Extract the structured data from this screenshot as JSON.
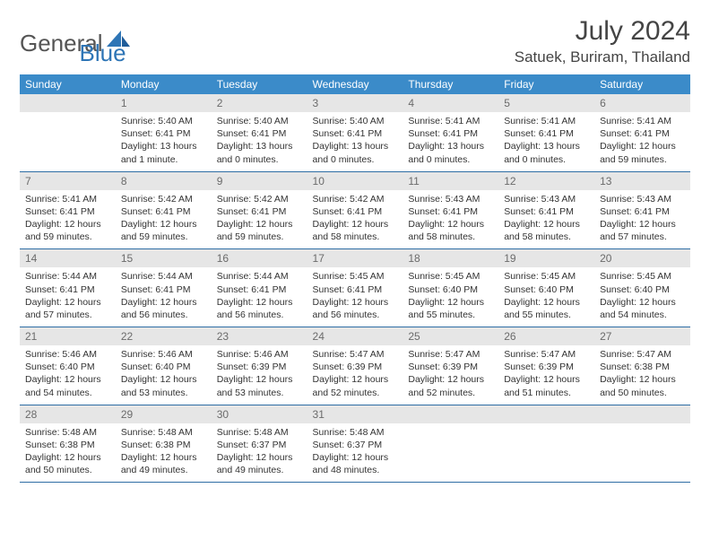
{
  "logo": {
    "general": "General",
    "blue": "Blue"
  },
  "header": {
    "title": "July 2024",
    "location": "Satuek, Buriram, Thailand"
  },
  "colors": {
    "header_bg": "#3b8bc9",
    "header_text": "#ffffff",
    "daynum_bg": "#e6e6e6",
    "daynum_text": "#6b6b6b",
    "cell_border": "#2e6da4",
    "logo_blue": "#2e75b6",
    "logo_gray": "#555555"
  },
  "layout": {
    "columns": 7,
    "weeks": 5
  },
  "weekdays": [
    "Sunday",
    "Monday",
    "Tuesday",
    "Wednesday",
    "Thursday",
    "Friday",
    "Saturday"
  ],
  "weeks": [
    [
      {
        "day": "",
        "sunrise": "",
        "sunset": "",
        "daylight": ""
      },
      {
        "day": "1",
        "sunrise": "Sunrise: 5:40 AM",
        "sunset": "Sunset: 6:41 PM",
        "daylight": "Daylight: 13 hours and 1 minute."
      },
      {
        "day": "2",
        "sunrise": "Sunrise: 5:40 AM",
        "sunset": "Sunset: 6:41 PM",
        "daylight": "Daylight: 13 hours and 0 minutes."
      },
      {
        "day": "3",
        "sunrise": "Sunrise: 5:40 AM",
        "sunset": "Sunset: 6:41 PM",
        "daylight": "Daylight: 13 hours and 0 minutes."
      },
      {
        "day": "4",
        "sunrise": "Sunrise: 5:41 AM",
        "sunset": "Sunset: 6:41 PM",
        "daylight": "Daylight: 13 hours and 0 minutes."
      },
      {
        "day": "5",
        "sunrise": "Sunrise: 5:41 AM",
        "sunset": "Sunset: 6:41 PM",
        "daylight": "Daylight: 13 hours and 0 minutes."
      },
      {
        "day": "6",
        "sunrise": "Sunrise: 5:41 AM",
        "sunset": "Sunset: 6:41 PM",
        "daylight": "Daylight: 12 hours and 59 minutes."
      }
    ],
    [
      {
        "day": "7",
        "sunrise": "Sunrise: 5:41 AM",
        "sunset": "Sunset: 6:41 PM",
        "daylight": "Daylight: 12 hours and 59 minutes."
      },
      {
        "day": "8",
        "sunrise": "Sunrise: 5:42 AM",
        "sunset": "Sunset: 6:41 PM",
        "daylight": "Daylight: 12 hours and 59 minutes."
      },
      {
        "day": "9",
        "sunrise": "Sunrise: 5:42 AM",
        "sunset": "Sunset: 6:41 PM",
        "daylight": "Daylight: 12 hours and 59 minutes."
      },
      {
        "day": "10",
        "sunrise": "Sunrise: 5:42 AM",
        "sunset": "Sunset: 6:41 PM",
        "daylight": "Daylight: 12 hours and 58 minutes."
      },
      {
        "day": "11",
        "sunrise": "Sunrise: 5:43 AM",
        "sunset": "Sunset: 6:41 PM",
        "daylight": "Daylight: 12 hours and 58 minutes."
      },
      {
        "day": "12",
        "sunrise": "Sunrise: 5:43 AM",
        "sunset": "Sunset: 6:41 PM",
        "daylight": "Daylight: 12 hours and 58 minutes."
      },
      {
        "day": "13",
        "sunrise": "Sunrise: 5:43 AM",
        "sunset": "Sunset: 6:41 PM",
        "daylight": "Daylight: 12 hours and 57 minutes."
      }
    ],
    [
      {
        "day": "14",
        "sunrise": "Sunrise: 5:44 AM",
        "sunset": "Sunset: 6:41 PM",
        "daylight": "Daylight: 12 hours and 57 minutes."
      },
      {
        "day": "15",
        "sunrise": "Sunrise: 5:44 AM",
        "sunset": "Sunset: 6:41 PM",
        "daylight": "Daylight: 12 hours and 56 minutes."
      },
      {
        "day": "16",
        "sunrise": "Sunrise: 5:44 AM",
        "sunset": "Sunset: 6:41 PM",
        "daylight": "Daylight: 12 hours and 56 minutes."
      },
      {
        "day": "17",
        "sunrise": "Sunrise: 5:45 AM",
        "sunset": "Sunset: 6:41 PM",
        "daylight": "Daylight: 12 hours and 56 minutes."
      },
      {
        "day": "18",
        "sunrise": "Sunrise: 5:45 AM",
        "sunset": "Sunset: 6:40 PM",
        "daylight": "Daylight: 12 hours and 55 minutes."
      },
      {
        "day": "19",
        "sunrise": "Sunrise: 5:45 AM",
        "sunset": "Sunset: 6:40 PM",
        "daylight": "Daylight: 12 hours and 55 minutes."
      },
      {
        "day": "20",
        "sunrise": "Sunrise: 5:45 AM",
        "sunset": "Sunset: 6:40 PM",
        "daylight": "Daylight: 12 hours and 54 minutes."
      }
    ],
    [
      {
        "day": "21",
        "sunrise": "Sunrise: 5:46 AM",
        "sunset": "Sunset: 6:40 PM",
        "daylight": "Daylight: 12 hours and 54 minutes."
      },
      {
        "day": "22",
        "sunrise": "Sunrise: 5:46 AM",
        "sunset": "Sunset: 6:40 PM",
        "daylight": "Daylight: 12 hours and 53 minutes."
      },
      {
        "day": "23",
        "sunrise": "Sunrise: 5:46 AM",
        "sunset": "Sunset: 6:39 PM",
        "daylight": "Daylight: 12 hours and 53 minutes."
      },
      {
        "day": "24",
        "sunrise": "Sunrise: 5:47 AM",
        "sunset": "Sunset: 6:39 PM",
        "daylight": "Daylight: 12 hours and 52 minutes."
      },
      {
        "day": "25",
        "sunrise": "Sunrise: 5:47 AM",
        "sunset": "Sunset: 6:39 PM",
        "daylight": "Daylight: 12 hours and 52 minutes."
      },
      {
        "day": "26",
        "sunrise": "Sunrise: 5:47 AM",
        "sunset": "Sunset: 6:39 PM",
        "daylight": "Daylight: 12 hours and 51 minutes."
      },
      {
        "day": "27",
        "sunrise": "Sunrise: 5:47 AM",
        "sunset": "Sunset: 6:38 PM",
        "daylight": "Daylight: 12 hours and 50 minutes."
      }
    ],
    [
      {
        "day": "28",
        "sunrise": "Sunrise: 5:48 AM",
        "sunset": "Sunset: 6:38 PM",
        "daylight": "Daylight: 12 hours and 50 minutes."
      },
      {
        "day": "29",
        "sunrise": "Sunrise: 5:48 AM",
        "sunset": "Sunset: 6:38 PM",
        "daylight": "Daylight: 12 hours and 49 minutes."
      },
      {
        "day": "30",
        "sunrise": "Sunrise: 5:48 AM",
        "sunset": "Sunset: 6:37 PM",
        "daylight": "Daylight: 12 hours and 49 minutes."
      },
      {
        "day": "31",
        "sunrise": "Sunrise: 5:48 AM",
        "sunset": "Sunset: 6:37 PM",
        "daylight": "Daylight: 12 hours and 48 minutes."
      },
      {
        "day": "",
        "sunrise": "",
        "sunset": "",
        "daylight": ""
      },
      {
        "day": "",
        "sunrise": "",
        "sunset": "",
        "daylight": ""
      },
      {
        "day": "",
        "sunrise": "",
        "sunset": "",
        "daylight": ""
      }
    ]
  ]
}
